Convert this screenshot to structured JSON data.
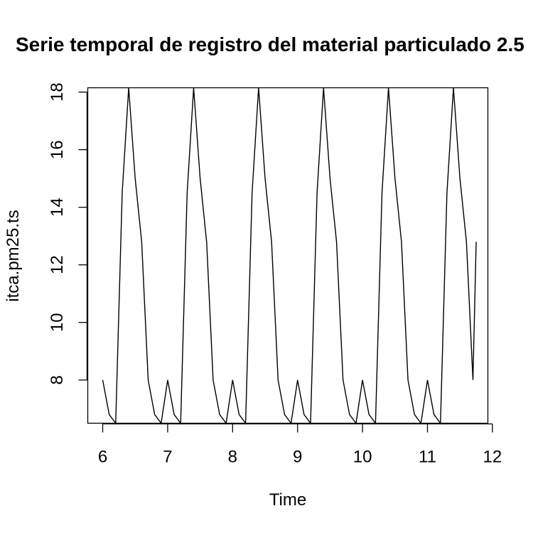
{
  "chart_data": {
    "type": "line",
    "title": "Serie temporal de registro del material particulado 2.5",
    "xlabel": "Time",
    "ylabel": "itca.pm25.ts",
    "xlim": [
      5.77,
      11.93
    ],
    "ylim": [
      6.5,
      18.15
    ],
    "xticks": [
      6,
      7,
      8,
      9,
      10,
      11,
      12
    ],
    "yticks": [
      8,
      10,
      12,
      14,
      16,
      18
    ],
    "grid": false,
    "legend": "none",
    "series_color": "#000000",
    "series": [
      {
        "start": 6.0,
        "frequency": 10,
        "cycle_values": [
          8.0,
          6.8,
          6.5,
          14.5,
          18.15,
          15.0,
          12.8,
          8.0,
          6.8,
          6.5
        ],
        "cycles": 5.8,
        "last_value": 12.8
      }
    ]
  }
}
